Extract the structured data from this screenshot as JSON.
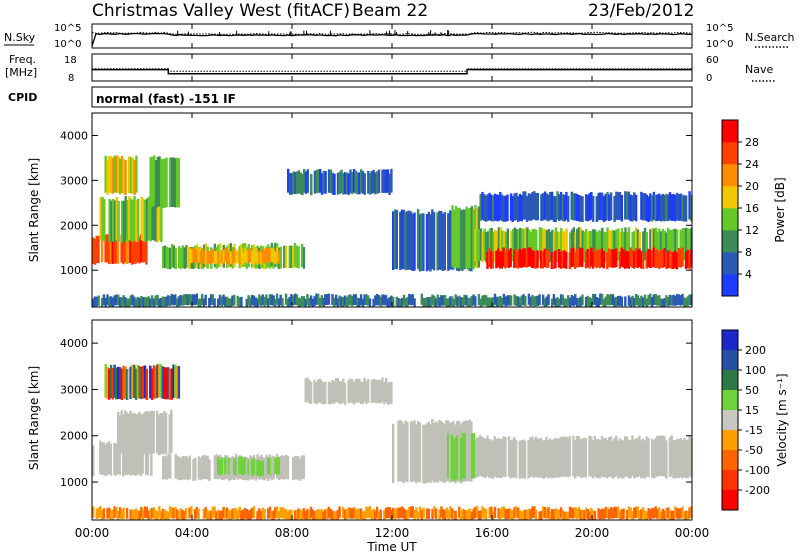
{
  "header": {
    "station": "Christmas Valley West (fitACF)",
    "beam": "Beam 22",
    "date": "23/Feb/2012"
  },
  "noise_panel": {
    "left_label": "N.Sky",
    "left_ticks": [
      "10^5",
      "10^0"
    ],
    "right_ticks": [
      "10^5",
      "10^0"
    ],
    "right_label": "N.Search"
  },
  "freq_panel": {
    "left_label_1": "Freq.",
    "left_label_2": "[MHz]",
    "left_ticks": [
      "18",
      "8"
    ],
    "right_ticks": [
      "60",
      "0"
    ],
    "right_label": "Nave"
  },
  "cpid": {
    "label": "CPID",
    "value": "normal (fast) -151 IF"
  },
  "colors": {
    "power": [
      "#1e3cff",
      "#2a5ab4",
      "#3c8c5a",
      "#64c828",
      "#f0c800",
      "#ff8c00",
      "#ff4000",
      "#ff0000"
    ],
    "velocity": [
      "#1e28c8",
      "#2850a0",
      "#2d7846",
      "#6ed23c",
      "#c8c8c0",
      "#ffa000",
      "#ff6400",
      "#ff3200",
      "#ff0000"
    ],
    "ground_scatter": "#c0c0b8"
  },
  "chart_data": [
    {
      "type": "heatmap",
      "name": "power",
      "xlabel": "Time UT",
      "ylabel": "Slant Range [km]",
      "x_ticks": [
        "00:00",
        "04:00",
        "08:00",
        "12:00",
        "16:00",
        "20:00",
        "00:00"
      ],
      "y_ticks": [
        "1000",
        "2000",
        "3000",
        "4000"
      ],
      "ylim": [
        180,
        4500
      ],
      "colorbar": {
        "label": "Power [dB]",
        "ticks": [
          "4",
          "8",
          "12",
          "16",
          "20",
          "24",
          "28"
        ],
        "range": [
          0,
          32
        ]
      },
      "regions": [
        {
          "t0": 0.0,
          "t1": 2.2,
          "r0": 1150,
          "r1": 1750,
          "value": 26
        },
        {
          "t0": 0.3,
          "t1": 2.8,
          "r0": 1650,
          "r1": 2600,
          "value": 14
        },
        {
          "t0": 0.5,
          "t1": 1.8,
          "r0": 2700,
          "r1": 3500,
          "value": 18
        },
        {
          "t0": 2.3,
          "t1": 3.5,
          "r0": 2400,
          "r1": 3500,
          "value": 12
        },
        {
          "t0": 2.8,
          "t1": 8.5,
          "r0": 1050,
          "r1": 1550,
          "value": 14
        },
        {
          "t0": 3.8,
          "t1": 7.5,
          "r0": 1150,
          "r1": 1450,
          "value": 20
        },
        {
          "t0": 7.8,
          "t1": 12.0,
          "r0": 2700,
          "r1": 3200,
          "value": 6
        },
        {
          "t0": 12.0,
          "t1": 15.2,
          "r0": 1000,
          "r1": 2300,
          "value": 6
        },
        {
          "t0": 14.3,
          "t1": 15.5,
          "r0": 1050,
          "r1": 2400,
          "value": 14
        },
        {
          "t0": 15.3,
          "t1": 24.0,
          "r0": 1200,
          "r1": 1900,
          "value": 14
        },
        {
          "t0": 15.7,
          "t1": 24.0,
          "r0": 1050,
          "r1": 1450,
          "value": 28
        },
        {
          "t0": 15.5,
          "t1": 24.0,
          "r0": 2100,
          "r1": 2700,
          "value": 5
        },
        {
          "t0": 0.0,
          "t1": 24.0,
          "r0": 200,
          "r1": 420,
          "value": 8
        }
      ]
    },
    {
      "type": "heatmap",
      "name": "velocity",
      "xlabel": "Time UT",
      "ylabel": "Slant Range [km]",
      "x_ticks": [
        "00:00",
        "04:00",
        "08:00",
        "12:00",
        "16:00",
        "20:00",
        "00:00"
      ],
      "y_ticks": [
        "1000",
        "2000",
        "3000",
        "4000"
      ],
      "ylim": [
        180,
        4500
      ],
      "colorbar": {
        "label": "Velocity [m s⁻¹]",
        "ticks": [
          "200",
          "100",
          "50",
          "15",
          "-15",
          "-50",
          "-100",
          "-200"
        ]
      },
      "regions": [
        {
          "t0": 0.0,
          "t1": 2.4,
          "r0": 1150,
          "r1": 1850,
          "kind": "ground"
        },
        {
          "t0": 1.0,
          "t1": 3.2,
          "r0": 1600,
          "r1": 2500,
          "kind": "ground"
        },
        {
          "t0": 2.8,
          "t1": 8.5,
          "r0": 1050,
          "r1": 1550,
          "kind": "ground"
        },
        {
          "t0": 8.5,
          "t1": 12.0,
          "r0": 2700,
          "r1": 3200,
          "kind": "ground"
        },
        {
          "t0": 12.0,
          "t1": 15.2,
          "r0": 1000,
          "r1": 2300,
          "kind": "ground"
        },
        {
          "t0": 15.2,
          "t1": 24.0,
          "r0": 1100,
          "r1": 1950,
          "kind": "ground"
        },
        {
          "t0": 5.0,
          "t1": 7.5,
          "r0": 1150,
          "r1": 1500,
          "kind": "green"
        },
        {
          "t0": 14.2,
          "t1": 15.3,
          "r0": 1050,
          "r1": 2000,
          "kind": "green"
        },
        {
          "t0": 0.5,
          "t1": 3.5,
          "r0": 2800,
          "r1": 3500,
          "kind": "mixed"
        },
        {
          "t0": 0.0,
          "t1": 24.0,
          "r0": 200,
          "r1": 420,
          "kind": "negative"
        }
      ]
    }
  ],
  "axis_labels": {
    "x_ticks": [
      "00:00",
      "04:00",
      "08:00",
      "12:00",
      "16:00",
      "20:00",
      "00:00"
    ],
    "time": "Time UT",
    "range": "Slant Range [km]",
    "power": "Power [dB]",
    "velocity": "Velocity [m s⁻¹]"
  }
}
